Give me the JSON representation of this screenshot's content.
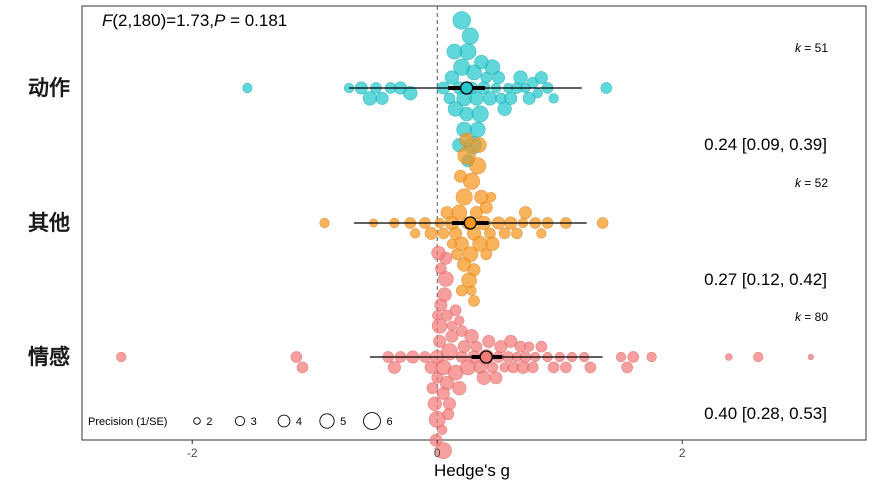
{
  "chart_data": {
    "type": "scatter",
    "stat_text": {
      "F": "F",
      "df": "(2,180)=1.73,",
      "P": "P",
      "rest": " = 0.181"
    },
    "xlabel": "Hedge's g",
    "xlim": [
      -2.9,
      3.5
    ],
    "xticks": [
      -2,
      0,
      2
    ],
    "xtick_labels": [
      "-2",
      "0",
      "2"
    ],
    "reference_line_x": 0,
    "legend": {
      "title": "Precision (1/SE)",
      "entries": [
        "2",
        "3",
        "4",
        "5",
        "6"
      ],
      "placement": "bottom-left"
    },
    "categories": [
      {
        "name": "动作",
        "k_label": "k",
        "k_value": "= 51",
        "estimate": 0.24,
        "ci": [
          0.09,
          0.39
        ],
        "pi": [
          -0.72,
          1.18
        ],
        "estimate_text": "0.24 [0.09, 0.39]",
        "color": "#22c7cc",
        "stroke": "#17a3a8",
        "points": [
          [
            -1.55,
            3.0
          ],
          [
            -0.72,
            3.0
          ],
          [
            -0.62,
            4.0
          ],
          [
            -0.55,
            4.5
          ],
          [
            -0.5,
            3.5
          ],
          [
            -0.45,
            4.0
          ],
          [
            -0.38,
            3.5
          ],
          [
            -0.3,
            4.0
          ],
          [
            -0.22,
            4.5
          ],
          [
            0.05,
            4.0
          ],
          [
            0.1,
            3.5
          ],
          [
            0.12,
            4.5
          ],
          [
            0.15,
            5.0
          ],
          [
            0.18,
            4.0
          ],
          [
            0.2,
            5.5
          ],
          [
            0.22,
            5.0
          ],
          [
            0.24,
            4.5
          ],
          [
            0.25,
            5.5
          ],
          [
            0.28,
            4.0
          ],
          [
            0.3,
            5.0
          ],
          [
            0.32,
            4.5
          ],
          [
            0.35,
            5.5
          ],
          [
            0.38,
            4.0
          ],
          [
            0.4,
            3.5
          ],
          [
            0.43,
            4.5
          ],
          [
            0.45,
            5.0
          ],
          [
            0.48,
            3.0
          ],
          [
            0.5,
            4.0
          ],
          [
            0.52,
            3.5
          ],
          [
            0.55,
            4.5
          ],
          [
            0.58,
            3.0
          ],
          [
            0.6,
            4.0
          ],
          [
            0.65,
            3.5
          ],
          [
            0.68,
            4.5
          ],
          [
            0.72,
            3.0
          ],
          [
            0.75,
            4.0
          ],
          [
            0.78,
            3.5
          ],
          [
            0.82,
            3.0
          ],
          [
            0.85,
            4.0
          ],
          [
            0.9,
            3.5
          ],
          [
            0.95,
            3.0
          ],
          [
            1.38,
            3.5
          ],
          [
            0.22,
            5.0
          ],
          [
            0.27,
            5.5
          ],
          [
            0.18,
            4.5
          ],
          [
            0.33,
            5.0
          ],
          [
            0.29,
            6.0
          ],
          [
            0.14,
            5.0
          ],
          [
            0.36,
            4.5
          ],
          [
            0.2,
            6.0
          ],
          [
            0.25,
            4.0
          ]
        ]
      },
      {
        "name": "其他",
        "k_label": "k",
        "k_value": "= 52",
        "estimate": 0.27,
        "ci": [
          0.12,
          0.42
        ],
        "pi": [
          -0.68,
          1.22
        ],
        "estimate_text": "0.27 [0.12, 0.42]",
        "color": "#f7951d",
        "stroke": "#d47a10",
        "points": [
          [
            -0.92,
            3.0
          ],
          [
            -0.52,
            2.5
          ],
          [
            -0.35,
            3.0
          ],
          [
            -0.22,
            3.5
          ],
          [
            -0.18,
            3.0
          ],
          [
            -0.1,
            3.5
          ],
          [
            -0.05,
            4.0
          ],
          [
            0.02,
            3.0
          ],
          [
            0.05,
            3.5
          ],
          [
            0.08,
            4.0
          ],
          [
            0.12,
            4.5
          ],
          [
            0.15,
            4.0
          ],
          [
            0.18,
            5.0
          ],
          [
            0.2,
            4.5
          ],
          [
            0.22,
            5.5
          ],
          [
            0.25,
            4.0
          ],
          [
            0.27,
            5.0
          ],
          [
            0.28,
            5.5
          ],
          [
            0.3,
            4.5
          ],
          [
            0.32,
            4.0
          ],
          [
            0.35,
            5.0
          ],
          [
            0.38,
            4.5
          ],
          [
            0.4,
            4.0
          ],
          [
            0.43,
            3.5
          ],
          [
            0.45,
            4.5
          ],
          [
            0.5,
            4.0
          ],
          [
            0.55,
            3.5
          ],
          [
            0.6,
            4.0
          ],
          [
            0.65,
            3.5
          ],
          [
            0.7,
            3.0
          ],
          [
            0.72,
            4.0
          ],
          [
            0.8,
            3.5
          ],
          [
            0.85,
            3.0
          ],
          [
            0.9,
            3.5
          ],
          [
            1.05,
            3.5
          ],
          [
            1.35,
            3.5
          ],
          [
            0.22,
            4.5
          ],
          [
            0.26,
            5.0
          ],
          [
            0.3,
            4.0
          ],
          [
            0.33,
            5.5
          ],
          [
            0.24,
            6.0
          ],
          [
            0.19,
            4.0
          ],
          [
            0.36,
            4.5
          ],
          [
            0.28,
            3.0
          ],
          [
            0.3,
            3.5
          ],
          [
            0.16,
            3.5
          ],
          [
            0.4,
            3.5
          ],
          [
            0.24,
            4.5
          ],
          [
            0.34,
            5.0
          ],
          [
            0.12,
            3.0
          ],
          [
            0.44,
            3.0
          ],
          [
            0.2,
            3.5
          ]
        ]
      },
      {
        "name": "情感",
        "k_label": "k",
        "k_value": "= 80",
        "estimate": 0.4,
        "ci": [
          0.28,
          0.53
        ],
        "pi": [
          -0.55,
          1.35
        ],
        "estimate_text": "0.40 [0.28, 0.53]",
        "color": "#f47a78",
        "stroke": "#d65f5d",
        "points": [
          [
            -2.58,
            3.0
          ],
          [
            -1.15,
            3.5
          ],
          [
            -1.1,
            3.5
          ],
          [
            -0.4,
            3.5
          ],
          [
            -0.35,
            4.0
          ],
          [
            -0.3,
            3.5
          ],
          [
            -0.2,
            4.0
          ],
          [
            -0.1,
            3.5
          ],
          [
            -0.05,
            4.0
          ],
          [
            0.0,
            4.5
          ],
          [
            0.02,
            4.0
          ],
          [
            0.05,
            5.0
          ],
          [
            0.08,
            4.5
          ],
          [
            0.1,
            5.5
          ],
          [
            0.12,
            4.0
          ],
          [
            0.15,
            5.0
          ],
          [
            0.18,
            4.5
          ],
          [
            0.2,
            3.5
          ],
          [
            0.22,
            4.0
          ],
          [
            0.25,
            5.0
          ],
          [
            0.28,
            4.5
          ],
          [
            0.3,
            4.0
          ],
          [
            0.32,
            3.5
          ],
          [
            0.35,
            4.0
          ],
          [
            0.38,
            4.5
          ],
          [
            0.4,
            5.0
          ],
          [
            0.42,
            4.0
          ],
          [
            0.45,
            3.5
          ],
          [
            0.48,
            4.0
          ],
          [
            0.5,
            3.5
          ],
          [
            0.52,
            4.0
          ],
          [
            0.55,
            3.0
          ],
          [
            0.58,
            3.5
          ],
          [
            0.6,
            4.0
          ],
          [
            0.62,
            3.5
          ],
          [
            0.65,
            3.0
          ],
          [
            0.68,
            3.5
          ],
          [
            0.7,
            4.0
          ],
          [
            0.72,
            3.5
          ],
          [
            0.75,
            3.0
          ],
          [
            0.78,
            3.5
          ],
          [
            0.8,
            3.0
          ],
          [
            0.85,
            3.5
          ],
          [
            0.9,
            3.0
          ],
          [
            0.95,
            3.5
          ],
          [
            1.0,
            3.0
          ],
          [
            1.05,
            3.5
          ],
          [
            1.1,
            3.0
          ],
          [
            1.2,
            3.0
          ],
          [
            1.25,
            3.5
          ],
          [
            1.5,
            3.0
          ],
          [
            1.55,
            3.5
          ],
          [
            1.6,
            3.5
          ],
          [
            1.75,
            3.0
          ],
          [
            2.38,
            2.0
          ],
          [
            2.62,
            3.0
          ],
          [
            3.05,
            1.5
          ],
          [
            0.0,
            3.5
          ],
          [
            0.02,
            5.0
          ],
          [
            0.05,
            4.0
          ],
          [
            -0.02,
            4.5
          ],
          [
            0.08,
            3.5
          ],
          [
            0.03,
            4.0
          ],
          [
            0.0,
            5.5
          ],
          [
            0.06,
            4.5
          ],
          [
            -0.04,
            3.5
          ],
          [
            0.1,
            4.0
          ],
          [
            0.04,
            3.0
          ],
          [
            0.07,
            5.0
          ],
          [
            -0.01,
            4.0
          ],
          [
            0.09,
            3.5
          ],
          [
            0.0,
            3.0
          ],
          [
            0.05,
            5.5
          ],
          [
            0.03,
            3.5
          ],
          [
            0.07,
            4.0
          ],
          [
            0.01,
            4.5
          ],
          [
            0.12,
            3.0
          ],
          [
            0.15,
            3.5
          ],
          [
            0.18,
            3.0
          ],
          [
            0.2,
            3.5
          ]
        ]
      }
    ]
  }
}
